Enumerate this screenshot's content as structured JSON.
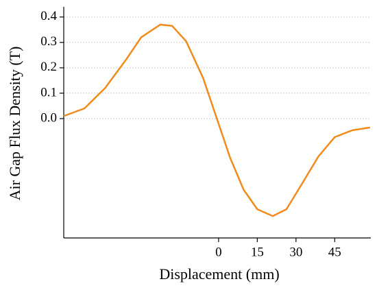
{
  "chart_data": {
    "type": "line",
    "xlabel": "Displacement (mm)",
    "ylabel": "Air Gap Flux Density (T)",
    "x": [
      -60,
      -52,
      -44,
      -36,
      -30,
      -22.6,
      -18,
      -12.6,
      -6,
      0,
      4.5,
      9.7,
      15,
      21,
      26.3,
      32,
      38.7,
      45,
      51.8,
      58.7
    ],
    "values": [
      0.01,
      0.04,
      0.12,
      0.23,
      0.32,
      0.37,
      0.365,
      0.305,
      0.16,
      -0.02,
      -0.155,
      -0.28,
      -0.357,
      -0.384,
      -0.357,
      -0.262,
      -0.149,
      -0.073,
      -0.046,
      -0.035
    ],
    "color": "#f28a1b",
    "xlim": [
      -60,
      59
    ],
    "ylim": [
      -0.47,
      0.44
    ],
    "xticks": [
      0,
      15,
      30,
      45
    ],
    "yticks": [
      {
        "value": 0,
        "label": "0.0"
      },
      {
        "value": 0.1,
        "label": "0.1"
      },
      {
        "value": 0.2,
        "label": "0.2"
      },
      {
        "value": 0.3,
        "label": "0.3"
      },
      {
        "value": 0.4,
        "label": "0.4"
      }
    ],
    "grid": true
  }
}
